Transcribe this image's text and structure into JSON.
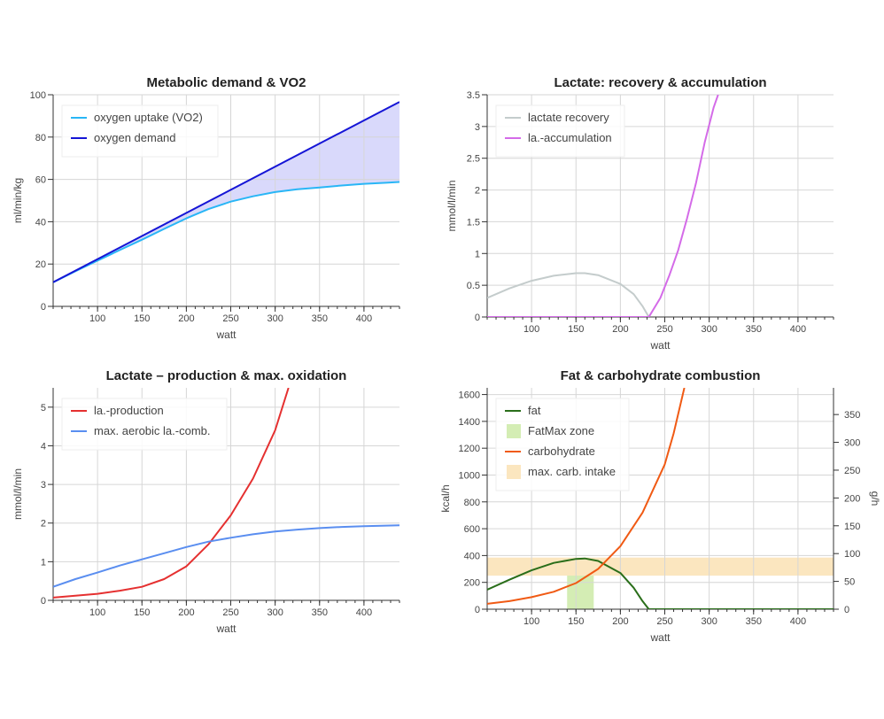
{
  "chart_data": [
    {
      "id": "c1",
      "type": "line",
      "title": "Metabolic demand & VO2",
      "xlabel": "watt",
      "ylabel": "ml/min/kg",
      "xlim": [
        50,
        440
      ],
      "ylim": [
        0,
        100
      ],
      "xticks": [
        100,
        150,
        200,
        250,
        300,
        350,
        400
      ],
      "yticks": [
        0,
        20,
        40,
        60,
        80,
        100
      ],
      "grid": true,
      "legend": "top-left",
      "fill_between": {
        "upper": "oxygen demand",
        "lower": "oxygen uptake (VO2)",
        "color": "#d9d9fb"
      },
      "series": [
        {
          "name": "oxygen uptake (VO2)",
          "color": "#29b6f6",
          "x": [
            50,
            75,
            100,
            125,
            150,
            175,
            200,
            225,
            250,
            275,
            300,
            325,
            350,
            375,
            400,
            425,
            440
          ],
          "y": [
            11.4,
            16.6,
            21.6,
            26.6,
            31.5,
            36.6,
            41.6,
            46,
            49.5,
            52,
            54,
            55.3,
            56.2,
            57.1,
            57.9,
            58.4,
            58.8
          ]
        },
        {
          "name": "oxygen demand",
          "color": "#1515d6",
          "x": [
            50,
            440
          ],
          "y": [
            11.4,
            96.6
          ]
        }
      ]
    },
    {
      "id": "c2",
      "type": "line",
      "title": "Lactate: recovery & accumulation",
      "xlabel": "watt",
      "ylabel": "mmol/l/min",
      "xlim": [
        50,
        440
      ],
      "ylim": [
        0,
        3.5
      ],
      "xticks": [
        100,
        150,
        200,
        250,
        300,
        350,
        400
      ],
      "yticks": [
        0,
        0.5,
        1,
        1.5,
        2,
        2.5,
        3,
        3.5
      ],
      "grid": true,
      "legend": "top-left",
      "series": [
        {
          "name": "lactate recovery",
          "color": "#c4cccc",
          "x": [
            50,
            75,
            100,
            125,
            150,
            160,
            175,
            200,
            215,
            225,
            232
          ],
          "y": [
            0.3,
            0.45,
            0.57,
            0.65,
            0.69,
            0.69,
            0.66,
            0.52,
            0.36,
            0.17,
            0
          ]
        },
        {
          "name": "la.-accumulation",
          "color": "#d46be8",
          "x": [
            50,
            100,
            150,
            200,
            232,
            245,
            255,
            265,
            275,
            285,
            295,
            305,
            310
          ],
          "y": [
            0,
            0,
            0,
            0,
            0,
            0.3,
            0.65,
            1.05,
            1.55,
            2.1,
            2.75,
            3.3,
            3.5
          ]
        }
      ]
    },
    {
      "id": "c3",
      "type": "line",
      "title": "Lactate – production & max. oxidation",
      "xlabel": "watt",
      "ylabel": "mmol/l/min",
      "xlim": [
        50,
        440
      ],
      "ylim": [
        0,
        5.5
      ],
      "xticks": [
        100,
        150,
        200,
        250,
        300,
        350,
        400
      ],
      "yticks": [
        0,
        1,
        2,
        3,
        4,
        5
      ],
      "grid": true,
      "legend": "top-left",
      "series": [
        {
          "name": "la.-production",
          "color": "#e53030",
          "x": [
            50,
            75,
            100,
            125,
            150,
            175,
            200,
            225,
            250,
            275,
            300,
            315
          ],
          "y": [
            0.07,
            0.12,
            0.17,
            0.25,
            0.35,
            0.55,
            0.88,
            1.45,
            2.2,
            3.15,
            4.4,
            5.5
          ]
        },
        {
          "name": "max. aerobic la.-comb.",
          "color": "#5a8ef0",
          "x": [
            50,
            75,
            100,
            125,
            150,
            175,
            200,
            225,
            250,
            275,
            300,
            325,
            350,
            375,
            400,
            440
          ],
          "y": [
            0.35,
            0.55,
            0.72,
            0.9,
            1.06,
            1.22,
            1.38,
            1.52,
            1.62,
            1.71,
            1.78,
            1.83,
            1.87,
            1.9,
            1.92,
            1.94
          ]
        }
      ]
    },
    {
      "id": "c4",
      "type": "line",
      "title": "Fat & carbohydrate combustion",
      "xlabel": "watt",
      "ylabel": "kcal/h",
      "ylabel_right": "g/h",
      "xlim": [
        50,
        440
      ],
      "ylim": [
        0,
        1650
      ],
      "ylim_right": [
        0,
        398
      ],
      "xticks": [
        100,
        150,
        200,
        250,
        300,
        350,
        400
      ],
      "yticks": [
        0,
        200,
        400,
        600,
        800,
        1000,
        1200,
        1400,
        1600
      ],
      "yticks_right": [
        0,
        50,
        100,
        150,
        200,
        250,
        300,
        350
      ],
      "grid": true,
      "legend": "top-left",
      "bands": [
        {
          "name": "FatMax zone",
          "color": "#d4edb4",
          "axis": "x",
          "from": 140,
          "to": 170
        },
        {
          "name": "max. carb. intake",
          "color": "#fbe6bf",
          "axis": "y",
          "from": 250,
          "to": 385
        }
      ],
      "series": [
        {
          "name": "fat",
          "color": "#2a6e1a",
          "x": [
            50,
            75,
            100,
            125,
            150,
            160,
            175,
            200,
            215,
            225,
            232,
            300,
            350,
            400,
            440
          ],
          "y": [
            145,
            220,
            290,
            345,
            375,
            378,
            360,
            270,
            160,
            60,
            0,
            0,
            0,
            0,
            0
          ]
        },
        {
          "name": "carbohydrate",
          "color": "#f05a14",
          "x": [
            50,
            75,
            100,
            125,
            150,
            175,
            200,
            225,
            250,
            260,
            272
          ],
          "y": [
            40,
            60,
            90,
            130,
            195,
            300,
            470,
            720,
            1080,
            1310,
            1650
          ]
        }
      ]
    }
  ]
}
